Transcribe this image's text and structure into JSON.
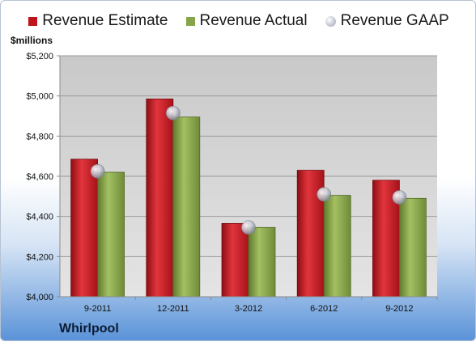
{
  "chart_data": {
    "type": "bar",
    "ylabel": "$millions",
    "ylim": [
      4000,
      5200
    ],
    "yticks": [
      "$4,000",
      "$4,200",
      "$4,400",
      "$4,600",
      "$4,800",
      "$5,000",
      "$5,200"
    ],
    "ytick_values": [
      4000,
      4200,
      4400,
      4600,
      4800,
      5000,
      5200
    ],
    "categories": [
      "9-2011",
      "12-2011",
      "3-2012",
      "6-2012",
      "9-2012"
    ],
    "series": [
      {
        "name": "Revenue Estimate",
        "kind": "bar",
        "color": "#c0141c",
        "values": [
          4685,
          4985,
          4365,
          4630,
          4580
        ]
      },
      {
        "name": "Revenue Actual",
        "kind": "bar",
        "color": "#86a54a",
        "values": [
          4620,
          4895,
          4345,
          4505,
          4490
        ]
      },
      {
        "name": "Revenue GAAP",
        "kind": "marker",
        "color": "#b8bcc8",
        "values": [
          4625,
          4915,
          4345,
          4510,
          4495
        ]
      }
    ],
    "grid": true,
    "legend_position": "top"
  },
  "company": "Whirlpool"
}
